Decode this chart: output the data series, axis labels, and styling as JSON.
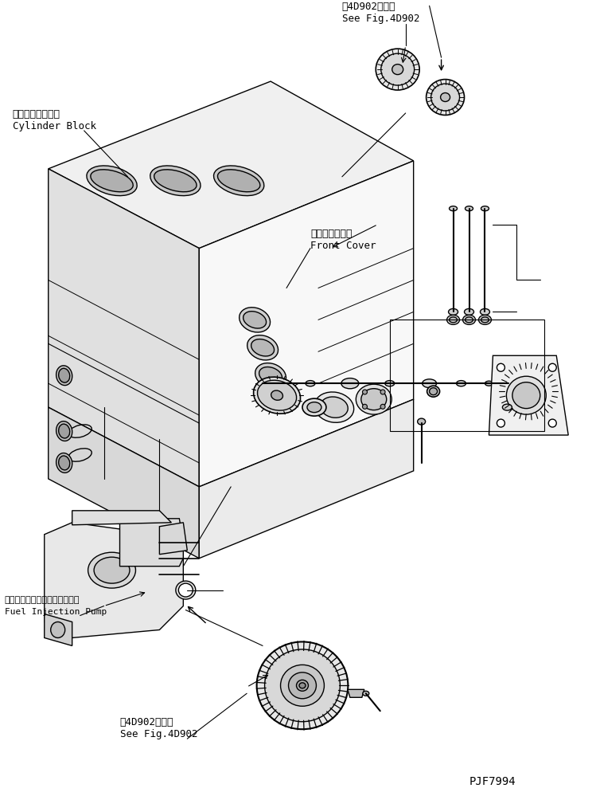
{
  "background_color": "#ffffff",
  "fig_width": 7.49,
  "fig_height": 9.99,
  "dpi": 100,
  "title": "",
  "labels": {
    "cylinder_block_jp": "シリンダブロック",
    "cylinder_block_en": "Cylinder Block",
    "front_cover_jp": "フロントカバー",
    "front_cover_en": "Front Cover",
    "fuel_pump_jp": "フェルインジェクションポンプ",
    "fuel_pump_en": "Fuel Injection Pump",
    "see_fig_top_jp": "第4D902図参照",
    "see_fig_top_en": "See Fig.4D902",
    "see_fig_bottom_jp": "第4D902図参照",
    "see_fig_bottom_en": "See Fig.4D902",
    "part_number": "PJF7994"
  },
  "line_color": "#000000",
  "text_color": "#000000",
  "line_width": 1.0
}
